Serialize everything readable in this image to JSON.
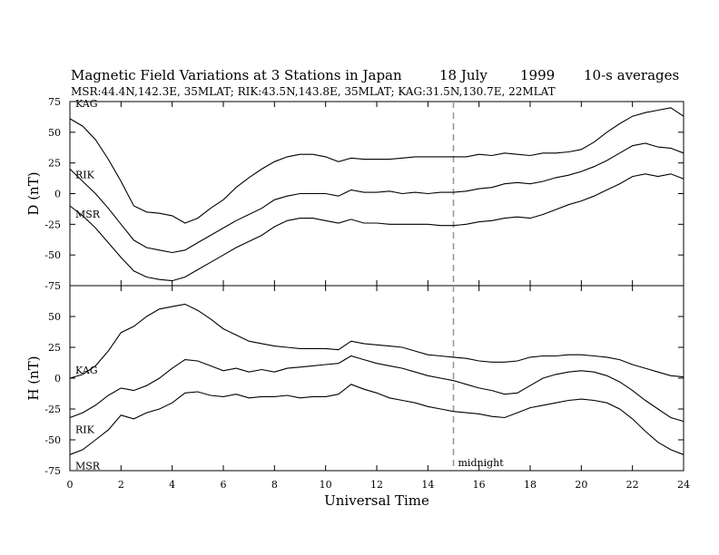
{
  "chart_data": {
    "type": "line",
    "title": "Magnetic Field Variations at 3 Stations in Japan",
    "date": "18 July",
    "year": "1999",
    "averaging": "10-s averages",
    "subtitle": "MSR:44.4N,142.3E, 35MLAT;  RIK:43.5N,143.8E, 35MLAT;  KAG:31.5N,130.7E, 22MLAT",
    "xlabel": "Universal Time",
    "xlim": [
      0,
      24
    ],
    "x_ticks": [
      0,
      2,
      4,
      6,
      8,
      10,
      12,
      14,
      16,
      18,
      20,
      22,
      24
    ],
    "grid": false,
    "midnight_marker": {
      "x": 15,
      "label": "midnight"
    },
    "panels": [
      {
        "ylabel": "D (nT)",
        "ylim": [
          -75,
          75
        ],
        "y_ticks": [
          -75,
          -50,
          -25,
          0,
          25,
          50,
          75
        ],
        "series": [
          {
            "name": "KAG",
            "x": [
              0,
              0.5,
              1,
              1.5,
              2,
              2.5,
              3,
              3.5,
              4,
              4.5,
              5,
              5.5,
              6,
              6.5,
              7,
              7.5,
              8,
              8.5,
              9,
              9.5,
              10,
              10.5,
              11,
              11.5,
              12,
              12.5,
              13,
              13.5,
              14,
              14.5,
              15,
              15.5,
              16,
              16.5,
              17,
              17.5,
              18,
              18.5,
              19,
              19.5,
              20,
              20.5,
              21,
              21.5,
              22,
              22.5,
              23,
              23.5,
              24
            ],
            "values": [
              61,
              55,
              44,
              28,
              10,
              -10,
              -15,
              -16,
              -18,
              -24,
              -20,
              -12,
              -5,
              5,
              13,
              20,
              26,
              30,
              32,
              32,
              30,
              26,
              29,
              28,
              28,
              28,
              29,
              30,
              30,
              30,
              30,
              30,
              32,
              31,
              33,
              32,
              31,
              33,
              33,
              34,
              36,
              42,
              50,
              57,
              63,
              66,
              68,
              70,
              63
            ]
          },
          {
            "name": "RIK",
            "x": [
              0,
              0.5,
              1,
              1.5,
              2,
              2.5,
              3,
              3.5,
              4,
              4.5,
              5,
              5.5,
              6,
              6.5,
              7,
              7.5,
              8,
              8.5,
              9,
              9.5,
              10,
              10.5,
              11,
              11.5,
              12,
              12.5,
              13,
              13.5,
              14,
              14.5,
              15,
              15.5,
              16,
              16.5,
              17,
              17.5,
              18,
              18.5,
              19,
              19.5,
              20,
              20.5,
              21,
              21.5,
              22,
              22.5,
              23,
              23.5,
              24
            ],
            "values": [
              20,
              10,
              0,
              -12,
              -25,
              -38,
              -44,
              -46,
              -48,
              -46,
              -40,
              -34,
              -28,
              -22,
              -17,
              -12,
              -5,
              -2,
              0,
              0,
              0,
              -2,
              3,
              1,
              1,
              2,
              0,
              1,
              0,
              1,
              1,
              2,
              4,
              5,
              8,
              9,
              8,
              10,
              13,
              15,
              18,
              22,
              27,
              33,
              39,
              41,
              38,
              37,
              33
            ]
          },
          {
            "name": "MSR",
            "x": [
              0,
              0.5,
              1,
              1.5,
              2,
              2.5,
              3,
              3.5,
              4,
              4.5,
              5,
              5.5,
              6,
              6.5,
              7,
              7.5,
              8,
              8.5,
              9,
              9.5,
              10,
              10.5,
              11,
              11.5,
              12,
              12.5,
              13,
              13.5,
              14,
              14.5,
              15,
              15.5,
              16,
              16.5,
              17,
              17.5,
              18,
              18.5,
              19,
              19.5,
              20,
              20.5,
              21,
              21.5,
              22,
              22.5,
              23,
              23.5,
              24
            ],
            "values": [
              -10,
              -18,
              -28,
              -40,
              -52,
              -63,
              -68,
              -70,
              -71,
              -68,
              -62,
              -56,
              -50,
              -44,
              -39,
              -34,
              -27,
              -22,
              -20,
              -20,
              -22,
              -24,
              -21,
              -24,
              -24,
              -25,
              -25,
              -25,
              -25,
              -26,
              -26,
              -25,
              -23,
              -22,
              -20,
              -19,
              -20,
              -17,
              -13,
              -9,
              -6,
              -2,
              3,
              8,
              14,
              16,
              14,
              16,
              12
            ]
          }
        ]
      },
      {
        "ylabel": "H (nT)",
        "ylim": [
          -75,
          75
        ],
        "y_ticks": [
          -75,
          -50,
          -25,
          0,
          25,
          50
        ],
        "series": [
          {
            "name": "KAG",
            "x": [
              0,
              0.5,
              1,
              1.5,
              2,
              2.5,
              3,
              3.5,
              4,
              4.5,
              5,
              5.5,
              6,
              6.5,
              7,
              7.5,
              8,
              8.5,
              9,
              9.5,
              10,
              10.5,
              11,
              11.5,
              12,
              12.5,
              13,
              13.5,
              14,
              14.5,
              15,
              15.5,
              16,
              16.5,
              17,
              17.5,
              18,
              18.5,
              19,
              19.5,
              20,
              20.5,
              21,
              21.5,
              22,
              22.5,
              23,
              23.5,
              24
            ],
            "values": [
              0,
              3,
              10,
              22,
              37,
              42,
              50,
              56,
              58,
              60,
              55,
              48,
              40,
              35,
              30,
              28,
              26,
              25,
              24,
              24,
              24,
              23,
              30,
              28,
              27,
              26,
              25,
              22,
              19,
              18,
              17,
              16,
              14,
              13,
              13,
              14,
              17,
              18,
              18,
              19,
              19,
              18,
              17,
              15,
              11,
              8,
              5,
              2,
              1
            ]
          },
          {
            "name": "RIK",
            "x": [
              0,
              0.5,
              1,
              1.5,
              2,
              2.5,
              3,
              3.5,
              4,
              4.5,
              5,
              5.5,
              6,
              6.5,
              7,
              7.5,
              8,
              8.5,
              9,
              9.5,
              10,
              10.5,
              11,
              11.5,
              12,
              12.5,
              13,
              13.5,
              14,
              14.5,
              15,
              15.5,
              16,
              16.5,
              17,
              17.5,
              18,
              18.5,
              19,
              19.5,
              20,
              20.5,
              21,
              21.5,
              22,
              22.5,
              23,
              23.5,
              24
            ],
            "values": [
              -32,
              -28,
              -22,
              -14,
              -8,
              -10,
              -6,
              0,
              8,
              15,
              14,
              10,
              6,
              8,
              5,
              7,
              5,
              8,
              9,
              10,
              11,
              12,
              18,
              15,
              12,
              10,
              8,
              5,
              2,
              0,
              -2,
              -5,
              -8,
              -10,
              -13,
              -12,
              -6,
              0,
              3,
              5,
              6,
              5,
              2,
              -3,
              -10,
              -18,
              -25,
              -32,
              -35
            ]
          },
          {
            "name": "MSR",
            "x": [
              0,
              0.5,
              1,
              1.5,
              2,
              2.5,
              3,
              3.5,
              4,
              4.5,
              5,
              5.5,
              6,
              6.5,
              7,
              7.5,
              8,
              8.5,
              9,
              9.5,
              10,
              10.5,
              11,
              11.5,
              12,
              12.5,
              13,
              13.5,
              14,
              14.5,
              15,
              15.5,
              16,
              16.5,
              17,
              17.5,
              18,
              18.5,
              19,
              19.5,
              20,
              20.5,
              21,
              21.5,
              22,
              22.5,
              23,
              23.5,
              24
            ],
            "values": [
              -62,
              -58,
              -50,
              -42,
              -30,
              -33,
              -28,
              -25,
              -20,
              -12,
              -11,
              -14,
              -15,
              -13,
              -16,
              -15,
              -15,
              -14,
              -16,
              -15,
              -15,
              -13,
              -5,
              -9,
              -12,
              -16,
              -18,
              -20,
              -23,
              -25,
              -27,
              -28,
              -29,
              -31,
              -32,
              -28,
              -24,
              -22,
              -20,
              -18,
              -17,
              -18,
              -20,
              -25,
              -33,
              -43,
              -52,
              -58,
              -62
            ]
          }
        ]
      }
    ]
  }
}
